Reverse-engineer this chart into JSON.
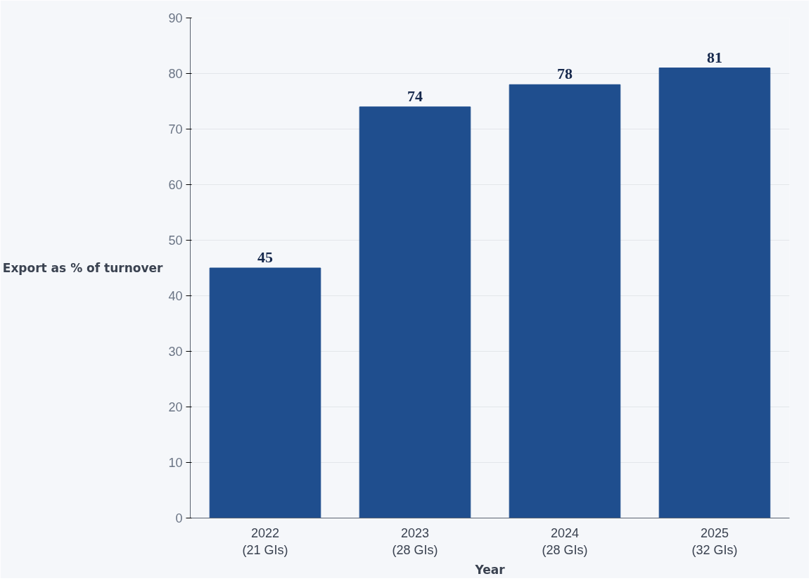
{
  "chart_data": {
    "type": "bar",
    "xlabel": "Year",
    "ylabel": "Export as % of turnover",
    "categories": [
      "2022\n(21 GIs)",
      "2023\n(28 GIs)",
      "2024\n(28 GIs)",
      "2025\n(32 GIs)"
    ],
    "values": [
      45,
      74,
      78,
      81
    ],
    "color": "#1f4e8e",
    "ylim": [
      0,
      90
    ],
    "yticks": [
      0,
      10,
      20,
      30,
      40,
      50,
      60,
      70,
      80,
      90
    ],
    "grid": "y",
    "data_labels": true
  }
}
